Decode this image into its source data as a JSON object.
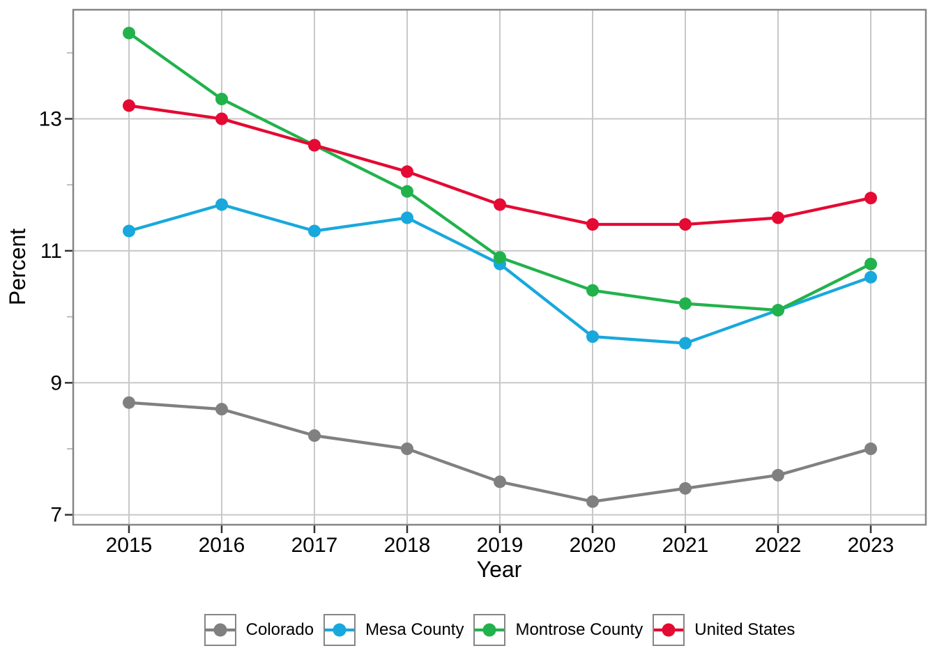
{
  "chart_data": {
    "type": "line",
    "title": "",
    "xlabel": "Year",
    "ylabel": "Percent",
    "categories": [
      2015,
      2016,
      2017,
      2018,
      2019,
      2020,
      2021,
      2022,
      2023
    ],
    "series": [
      {
        "name": "Colorado",
        "color": "#808080",
        "values": [
          8.7,
          8.6,
          8.2,
          8.0,
          7.5,
          7.2,
          7.4,
          7.6,
          8.0
        ]
      },
      {
        "name": "Mesa County",
        "color": "#18A8DC",
        "values": [
          11.3,
          11.7,
          11.3,
          11.5,
          10.8,
          9.7,
          9.6,
          10.1,
          10.6
        ]
      },
      {
        "name": "Montrose County",
        "color": "#22B24C",
        "values": [
          14.3,
          13.3,
          12.6,
          11.9,
          10.9,
          10.4,
          10.2,
          10.1,
          10.8
        ]
      },
      {
        "name": "United States",
        "color": "#E40A33",
        "values": [
          13.2,
          13.0,
          12.6,
          12.2,
          11.7,
          11.4,
          11.4,
          11.5,
          11.8
        ]
      }
    ],
    "y_axis": {
      "labeled_ticks": [
        7,
        9,
        11,
        13
      ],
      "minor_ticks": [
        8,
        10,
        12,
        14
      ],
      "range": [
        6.85,
        14.65
      ]
    },
    "x_axis": {
      "ticks": [
        2015,
        2016,
        2017,
        2018,
        2019,
        2020,
        2021,
        2022,
        2023
      ]
    },
    "grid": {
      "vertical_per_year": true,
      "horizontal_at_labeled_ticks": true
    },
    "legend": {
      "position": "bottom",
      "items": [
        "Colorado",
        "Mesa County",
        "Montrose County",
        "United States"
      ]
    },
    "colors": {
      "gridline": "#C8C8C8",
      "panel_border": "#858585",
      "major_tick": "#333333",
      "minor_tick": "#BDBDBD",
      "text": "#000000",
      "background": "#FFFFFF"
    }
  }
}
